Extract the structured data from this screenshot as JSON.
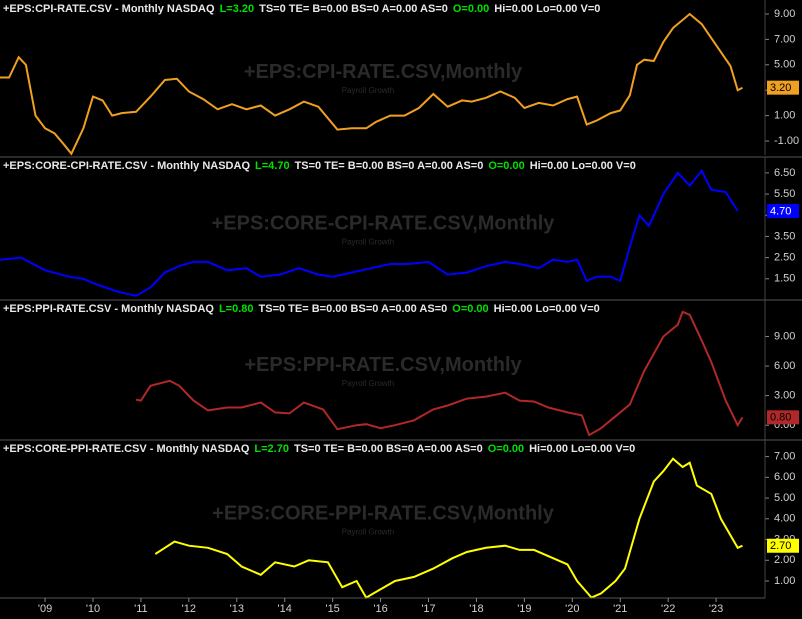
{
  "chart_data": [
    {
      "type": "line",
      "color": "#f0a020",
      "legend": [
        "+EPS:CPI-RATE.CSV - Monthly  NASDAQ",
        "L=3.20",
        "TS=0  TE=  B=0.00  BS=0  A=0.00  AS=0",
        "O=0.00",
        "Hi=0.00  Lo=0.00  V=0"
      ],
      "watermark": "+EPS:CPI-RATE.CSV,Monthly",
      "subtitle": "Payroll Growth",
      "marker": {
        "value": 3.2,
        "label": "3.20"
      },
      "xlim": [
        2008.06,
        2024.02
      ],
      "ylim": [
        -2.1,
        10.1
      ],
      "yticks": [
        {
          "value": -1,
          "label": "-1.00"
        },
        {
          "value": 1,
          "label": "1.00"
        },
        {
          "value": 3,
          "label": "3.00"
        },
        {
          "value": 5,
          "label": "5.00"
        },
        {
          "value": 7,
          "label": "7.00"
        },
        {
          "value": 9,
          "label": "9.00"
        }
      ],
      "x": [
        2008.06,
        2008.25,
        2008.45,
        2008.6,
        2008.8,
        2009.0,
        2009.2,
        2009.4,
        2009.55,
        2009.8,
        2010.0,
        2010.2,
        2010.4,
        2010.6,
        2010.9,
        2011.2,
        2011.5,
        2011.75,
        2012.0,
        2012.3,
        2012.6,
        2012.9,
        2013.2,
        2013.5,
        2013.8,
        2014.1,
        2014.4,
        2014.7,
        2014.9,
        2015.1,
        2015.4,
        2015.7,
        2015.9,
        2016.2,
        2016.5,
        2016.8,
        2017.1,
        2017.4,
        2017.7,
        2017.9,
        2018.2,
        2018.5,
        2018.8,
        2019.0,
        2019.3,
        2019.6,
        2019.9,
        2020.1,
        2020.3,
        2020.5,
        2020.8,
        2021.0,
        2021.2,
        2021.35,
        2021.5,
        2021.7,
        2021.9,
        2022.1,
        2022.45,
        2022.7,
        2022.9,
        2023.1,
        2023.3,
        2023.45,
        2023.55
      ],
      "values": [
        4.0,
        4.0,
        5.6,
        5.0,
        1.0,
        0.0,
        -0.4,
        -1.3,
        -2.0,
        0.0,
        2.5,
        2.2,
        1.0,
        1.2,
        1.3,
        2.5,
        3.8,
        3.9,
        2.9,
        2.3,
        1.5,
        1.9,
        1.5,
        1.8,
        1.0,
        1.5,
        2.1,
        1.7,
        0.8,
        -0.1,
        0.0,
        0.0,
        0.5,
        1.0,
        1.0,
        1.6,
        2.7,
        1.7,
        2.2,
        2.1,
        2.4,
        2.9,
        2.4,
        1.6,
        2.0,
        1.8,
        2.3,
        2.5,
        0.3,
        0.6,
        1.2,
        1.4,
        2.6,
        5.0,
        5.4,
        5.3,
        6.8,
        7.9,
        9.0,
        8.2,
        7.1,
        6.0,
        4.9,
        3.0,
        3.2
      ]
    },
    {
      "type": "line",
      "color": "#0000ff",
      "legend": [
        "+EPS:CORE-CPI-RATE.CSV - Monthly  NASDAQ",
        "L=4.70",
        "TS=0  TE=  B=0.00  BS=0  A=0.00  AS=0",
        "O=0.00",
        "Hi=0.00  Lo=0.00  V=0"
      ],
      "watermark": "+EPS:CORE-CPI-RATE.CSV,Monthly",
      "subtitle": "Payroll Growth",
      "marker": {
        "value": 4.7,
        "label": "4.70"
      },
      "xlim": [
        2008.06,
        2024.02
      ],
      "ylim": [
        0.5,
        7.25
      ],
      "yticks": [
        {
          "value": 1.5,
          "label": "1.50"
        },
        {
          "value": 2.5,
          "label": "2.50"
        },
        {
          "value": 3.5,
          "label": "3.50"
        },
        {
          "value": 4.5,
          "label": "4.50"
        },
        {
          "value": 5.5,
          "label": "5.50"
        },
        {
          "value": 6.5,
          "label": "6.50"
        }
      ],
      "x": [
        2008.06,
        2008.5,
        2009.0,
        2009.5,
        2009.8,
        2010.0,
        2010.5,
        2010.9,
        2011.2,
        2011.5,
        2011.8,
        2012.1,
        2012.4,
        2012.8,
        2013.2,
        2013.5,
        2013.9,
        2014.3,
        2014.7,
        2015.0,
        2015.4,
        2015.8,
        2016.2,
        2016.6,
        2017.0,
        2017.4,
        2017.8,
        2018.2,
        2018.6,
        2018.9,
        2019.3,
        2019.6,
        2019.9,
        2020.1,
        2020.3,
        2020.5,
        2020.8,
        2021.0,
        2021.2,
        2021.4,
        2021.6,
        2021.9,
        2022.2,
        2022.45,
        2022.7,
        2022.9,
        2023.2,
        2023.45
      ],
      "values": [
        2.4,
        2.5,
        1.9,
        1.6,
        1.5,
        1.3,
        0.9,
        0.7,
        1.1,
        1.8,
        2.1,
        2.3,
        2.3,
        1.9,
        2.0,
        1.6,
        1.7,
        2.0,
        1.7,
        1.6,
        1.8,
        2.0,
        2.2,
        2.2,
        2.3,
        1.7,
        1.8,
        2.1,
        2.3,
        2.2,
        2.0,
        2.4,
        2.3,
        2.4,
        1.4,
        1.6,
        1.6,
        1.4,
        3.0,
        4.5,
        4.0,
        5.5,
        6.5,
        5.9,
        6.6,
        5.7,
        5.6,
        4.7
      ]
    },
    {
      "type": "line",
      "color": "#b02828",
      "legend": [
        "+EPS:PPI-RATE.CSV - Monthly  NASDAQ",
        "L=0.80",
        "TS=0  TE=  B=0.00  BS=0  A=0.00  AS=0",
        "O=0.00",
        "Hi=0.00  Lo=0.00  V=0"
      ],
      "watermark": "+EPS:PPI-RATE.CSV,Monthly",
      "subtitle": "Payroll Growth",
      "marker": {
        "value": 0.8,
        "label": "0.80"
      },
      "xlim": [
        2008.06,
        2024.02
      ],
      "ylim": [
        -1.5,
        12.7
      ],
      "yticks": [
        {
          "value": 0,
          "label": "0.00"
        },
        {
          "value": 3,
          "label": "3.00"
        },
        {
          "value": 6,
          "label": "6.00"
        },
        {
          "value": 9,
          "label": "9.00"
        }
      ],
      "x": [
        2010.9,
        2011.0,
        2011.2,
        2011.6,
        2011.8,
        2012.1,
        2012.4,
        2012.8,
        2013.1,
        2013.5,
        2013.8,
        2014.1,
        2014.4,
        2014.8,
        2015.1,
        2015.5,
        2015.7,
        2016.0,
        2016.3,
        2016.7,
        2017.1,
        2017.4,
        2017.8,
        2018.2,
        2018.6,
        2018.9,
        2019.2,
        2019.5,
        2019.9,
        2020.2,
        2020.35,
        2020.6,
        2020.9,
        2021.2,
        2021.5,
        2021.9,
        2022.2,
        2022.3,
        2022.45,
        2022.7,
        2022.9,
        2023.2,
        2023.45,
        2023.55
      ],
      "values": [
        2.6,
        2.5,
        4.0,
        4.5,
        4.0,
        2.5,
        1.5,
        1.8,
        1.8,
        2.3,
        1.3,
        1.2,
        2.3,
        1.6,
        -0.4,
        0.0,
        0.1,
        -0.3,
        0.0,
        0.5,
        1.6,
        2.0,
        2.7,
        2.9,
        3.3,
        2.5,
        2.4,
        1.8,
        1.3,
        1.0,
        -1.0,
        -0.3,
        0.9,
        2.1,
        5.5,
        9.0,
        10.2,
        11.5,
        11.2,
        8.6,
        6.4,
        2.5,
        0.0,
        0.8
      ]
    },
    {
      "type": "line",
      "color": "#ffff00",
      "legend": [
        "+EPS:CORE-PPI-RATE.CSV - Monthly  NASDAQ",
        "L=2.70",
        "TS=0  TE=  B=0.00  BS=0  A=0.00  AS=0",
        "O=0.00",
        "Hi=0.00  Lo=0.00  V=0"
      ],
      "watermark": "+EPS:CORE-PPI-RATE.CSV,Monthly",
      "subtitle": "Payroll Growth",
      "marker": {
        "value": 2.7,
        "label": "2.70"
      },
      "xlim": [
        2008.06,
        2024.02
      ],
      "ylim": [
        0.18,
        7.8
      ],
      "yticks": [
        {
          "value": 1,
          "label": "1.00"
        },
        {
          "value": 2,
          "label": "2.00"
        },
        {
          "value": 3,
          "label": "3.00"
        },
        {
          "value": 4,
          "label": "4.00"
        },
        {
          "value": 5,
          "label": "5.00"
        },
        {
          "value": 6,
          "label": "6.00"
        },
        {
          "value": 7,
          "label": "7.00"
        }
      ],
      "xticks": [
        {
          "value": 2009,
          "label": "'09"
        },
        {
          "value": 2010,
          "label": "'10"
        },
        {
          "value": 2011,
          "label": "'11"
        },
        {
          "value": 2012,
          "label": "'12"
        },
        {
          "value": 2013,
          "label": "'13"
        },
        {
          "value": 2014,
          "label": "'14"
        },
        {
          "value": 2015,
          "label": "'15"
        },
        {
          "value": 2016,
          "label": "'16"
        },
        {
          "value": 2017,
          "label": "'17"
        },
        {
          "value": 2018,
          "label": "'18"
        },
        {
          "value": 2019,
          "label": "'19"
        },
        {
          "value": 2020,
          "label": "'20"
        },
        {
          "value": 2021,
          "label": "'21"
        },
        {
          "value": 2022,
          "label": "'22"
        },
        {
          "value": 2023,
          "label": "'23"
        }
      ],
      "x": [
        2011.3,
        2011.5,
        2011.7,
        2012.0,
        2012.4,
        2012.8,
        2013.1,
        2013.5,
        2013.8,
        2014.2,
        2014.5,
        2014.9,
        2015.2,
        2015.5,
        2015.7,
        2016.0,
        2016.3,
        2016.7,
        2017.1,
        2017.5,
        2017.8,
        2018.2,
        2018.6,
        2018.9,
        2019.2,
        2019.6,
        2019.9,
        2020.1,
        2020.4,
        2020.6,
        2020.9,
        2021.1,
        2021.4,
        2021.7,
        2021.9,
        2022.1,
        2022.3,
        2022.45,
        2022.6,
        2022.9,
        2023.1,
        2023.35,
        2023.45,
        2023.55
      ],
      "values": [
        2.3,
        2.6,
        2.9,
        2.7,
        2.6,
        2.3,
        1.7,
        1.3,
        1.9,
        1.7,
        2.0,
        1.9,
        0.7,
        1.0,
        0.2,
        0.6,
        1.0,
        1.2,
        1.6,
        2.1,
        2.4,
        2.6,
        2.7,
        2.5,
        2.5,
        2.1,
        1.8,
        1.0,
        0.2,
        0.4,
        1.0,
        1.6,
        4.0,
        5.8,
        6.3,
        6.9,
        6.5,
        6.7,
        5.6,
        5.2,
        4.0,
        3.0,
        2.6,
        2.7
      ]
    }
  ]
}
